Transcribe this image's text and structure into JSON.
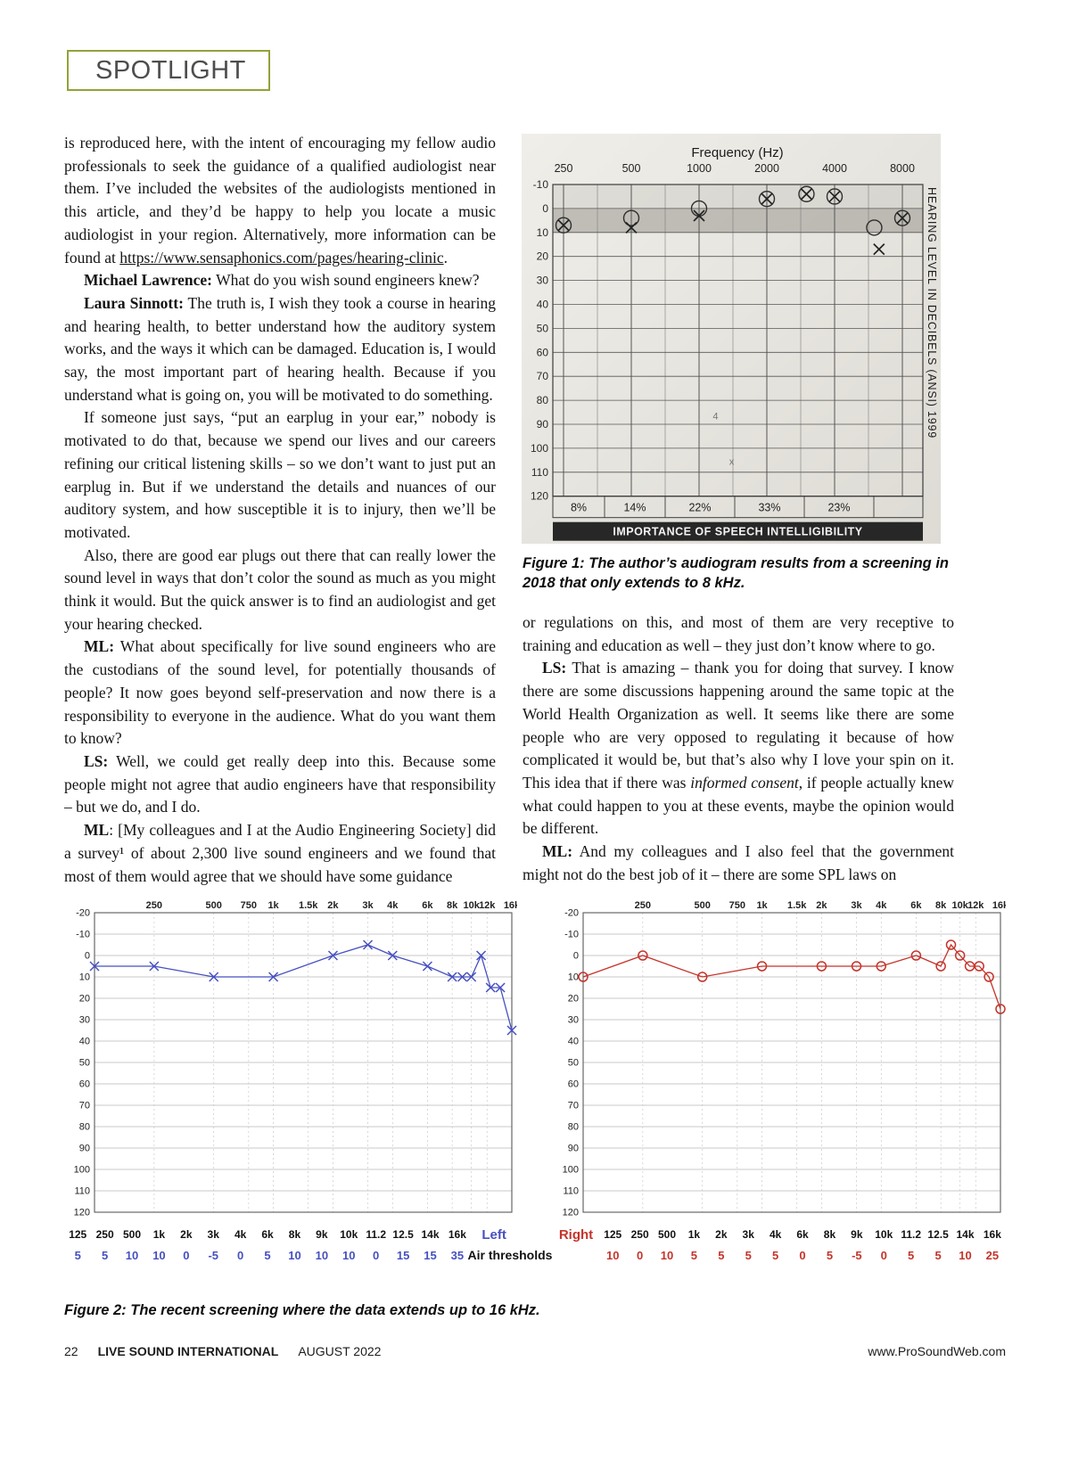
{
  "spotlight": {
    "label": "SPOTLIGHT"
  },
  "article": {
    "left_column": [
      {
        "indent": false,
        "segments": [
          {
            "t": "is reproduced here, with the intent of encouraging my fellow audio professionals to seek the guidance of a qualified audiologist near them. I’ve included the websites of the audiologists mentioned in this article, and they’d be happy to help you locate a music audiologist in your region. Alternatively, more information can be found at "
          },
          {
            "t": "https://www.sensaphonics.com/pages/hearing-clinic",
            "s": "link"
          },
          {
            "t": "."
          }
        ]
      },
      {
        "indent": true,
        "segments": [
          {
            "t": "Michael Lawrence:",
            "s": "bold"
          },
          {
            "t": " What do you wish sound engineers knew?"
          }
        ]
      },
      {
        "indent": true,
        "segments": [
          {
            "t": "Laura Sinnott:",
            "s": "bold"
          },
          {
            "t": " The truth is, I wish they took a course in hearing and hearing health, to better understand how the auditory system works, and the ways it which can be damaged. Education is, I would say, the most important part of hearing health. Because if you understand what is going on, you will be motivated to do something."
          }
        ]
      },
      {
        "indent": true,
        "segments": [
          {
            "t": "If someone just says, “put an earplug in your ear,” nobody is motivated to do that, because we spend our lives and our careers refining our critical listening skills – so we don’t want to just put an earplug in. But if we understand the details and nuances of our auditory system, and how susceptible it is to injury, then we’ll be motivated."
          }
        ]
      },
      {
        "indent": true,
        "segments": [
          {
            "t": "Also, there are good ear plugs out there that can really lower the sound level in ways that don’t color the sound as much as you might think it would. But the quick answer is to find an audiologist and get your hearing checked."
          }
        ]
      },
      {
        "indent": true,
        "segments": [
          {
            "t": "ML:",
            "s": "bold"
          },
          {
            "t": " What about specifically for live sound engineers who are the custodians of the sound level, for potentially thousands of people? It now goes beyond self-preservation and now there is a responsibility to everyone in the audience. What do you want them to know?"
          }
        ]
      },
      {
        "indent": true,
        "segments": [
          {
            "t": "LS:",
            "s": "bold"
          },
          {
            "t": " Well, we could get really deep into this. Because some people might not agree that audio engineers have that responsibility – but we do, and I do."
          }
        ]
      },
      {
        "indent": true,
        "segments": [
          {
            "t": "ML",
            "s": "bold"
          },
          {
            "t": ": [My colleagues and I at the Audio Engineering Society] did a survey¹ of about 2,300 live sound engineers and we found that most of them would agree that we should have some guidance"
          }
        ]
      }
    ],
    "right_column": [
      {
        "indent": false,
        "segments": [
          {
            "t": "or regulations on this, and most of them are very receptive to training and education as well – they just don’t know where to go."
          }
        ]
      },
      {
        "indent": true,
        "segments": [
          {
            "t": "LS:",
            "s": "bold"
          },
          {
            "t": " That is amazing – thank you for doing that survey. I know there are some discussions happening around the same topic at the World Health Organization as well. It seems like there are some people who are very opposed to regulating it because of how complicated it would be, but that’s also why I love your spin on it. This idea that if there was "
          },
          {
            "t": "informed consent",
            "s": "italic"
          },
          {
            "t": ", if people actually knew what could happen to you at these events, maybe the opinion would be different."
          }
        ]
      },
      {
        "indent": true,
        "segments": [
          {
            "t": "ML:",
            "s": "bold"
          },
          {
            "t": " And my colleagues and I also feel that the government might not do the best job of it – there are some SPL laws on"
          }
        ]
      }
    ]
  },
  "figure1": {
    "caption": "Figure 1: The author’s audiogram results from a screening in 2018 that only extends to 8 kHz.",
    "chart": {
      "type": "scatter",
      "title": "Frequency (Hz)",
      "x_tick_labels": [
        "250",
        "500",
        "1000",
        "2000",
        "4000",
        "8000"
      ],
      "y_ticks": [
        -10,
        0,
        10,
        20,
        30,
        40,
        50,
        60,
        70,
        80,
        90,
        100,
        110,
        120
      ],
      "right_axis_label": "HEARING LEVEL IN DECIBELS (ANSI) 1999",
      "series": [
        {
          "name": "right-ear-circles",
          "marker": "circle",
          "points": [
            [
              250,
              7
            ],
            [
              500,
              4
            ],
            [
              1000,
              0
            ],
            [
              2000,
              -4
            ],
            [
              3000,
              -6
            ],
            [
              4000,
              -5
            ],
            [
              6000,
              8
            ],
            [
              8000,
              4
            ]
          ]
        },
        {
          "name": "left-ear-x",
          "marker": "x",
          "points": [
            [
              250,
              7
            ],
            [
              500,
              8
            ],
            [
              1000,
              3
            ],
            [
              2000,
              -4
            ],
            [
              3000,
              -6
            ],
            [
              4000,
              -5
            ],
            [
              6300,
              17
            ],
            [
              8000,
              4
            ]
          ]
        }
      ],
      "handwritten_marks": [
        {
          "t": "4",
          "f": 1150,
          "db": 88
        },
        {
          "t": "x",
          "f": 1360,
          "db": 107
        }
      ],
      "speech_intelligibility_row": [
        "8%",
        "14%",
        "22%",
        "33%",
        "23%"
      ],
      "speech_intelligibility_label": "IMPORTANCE OF SPEECH INTELLIGIBILITY"
    }
  },
  "figure2": {
    "caption": "Figure 2: The recent screening where the data extends up to 16 kHz.",
    "air_thresholds_label": "Air thresholds",
    "type": "line",
    "top_axis_labels": [
      [
        "250",
        1
      ],
      [
        "500",
        2
      ],
      [
        "750",
        2.585
      ],
      [
        "1k",
        3
      ],
      [
        "1.5k",
        3.585
      ],
      [
        "2k",
        4
      ],
      [
        "3k",
        4.585
      ],
      [
        "4k",
        5
      ],
      [
        "6k",
        5.585
      ],
      [
        "8k",
        6
      ],
      [
        "10k",
        6.322
      ],
      [
        "12k",
        6.585
      ],
      [
        "16k",
        7
      ]
    ],
    "y_ticks": [
      -20,
      -10,
      0,
      10,
      20,
      30,
      40,
      50,
      60,
      70,
      80,
      90,
      100,
      110,
      120
    ],
    "frequencies": [
      "125",
      "250",
      "500",
      "1k",
      "2k",
      "3k",
      "4k",
      "6k",
      "8k",
      "9k",
      "10k",
      "11.2",
      "12.5",
      "14k",
      "16k"
    ],
    "freq_octaves": [
      0,
      1,
      2,
      3,
      4,
      4.585,
      5,
      5.585,
      6,
      6.17,
      6.322,
      6.485,
      6.644,
      6.807,
      7
    ],
    "left": {
      "label": "Left",
      "color": "#4650c0",
      "marker": "x",
      "values": [
        5,
        5,
        10,
        10,
        0,
        -5,
        0,
        5,
        10,
        10,
        10,
        0,
        15,
        15,
        35
      ]
    },
    "right": {
      "label": "Right",
      "color": "#c5342b",
      "marker": "circle",
      "values": [
        10,
        0,
        10,
        5,
        5,
        5,
        5,
        0,
        5,
        -5,
        0,
        5,
        5,
        10,
        25
      ]
    }
  },
  "footer": {
    "page_number": "22",
    "magazine": "LIVE SOUND INTERNATIONAL",
    "date": "AUGUST  2022",
    "website": "www.ProSoundWeb.com"
  }
}
